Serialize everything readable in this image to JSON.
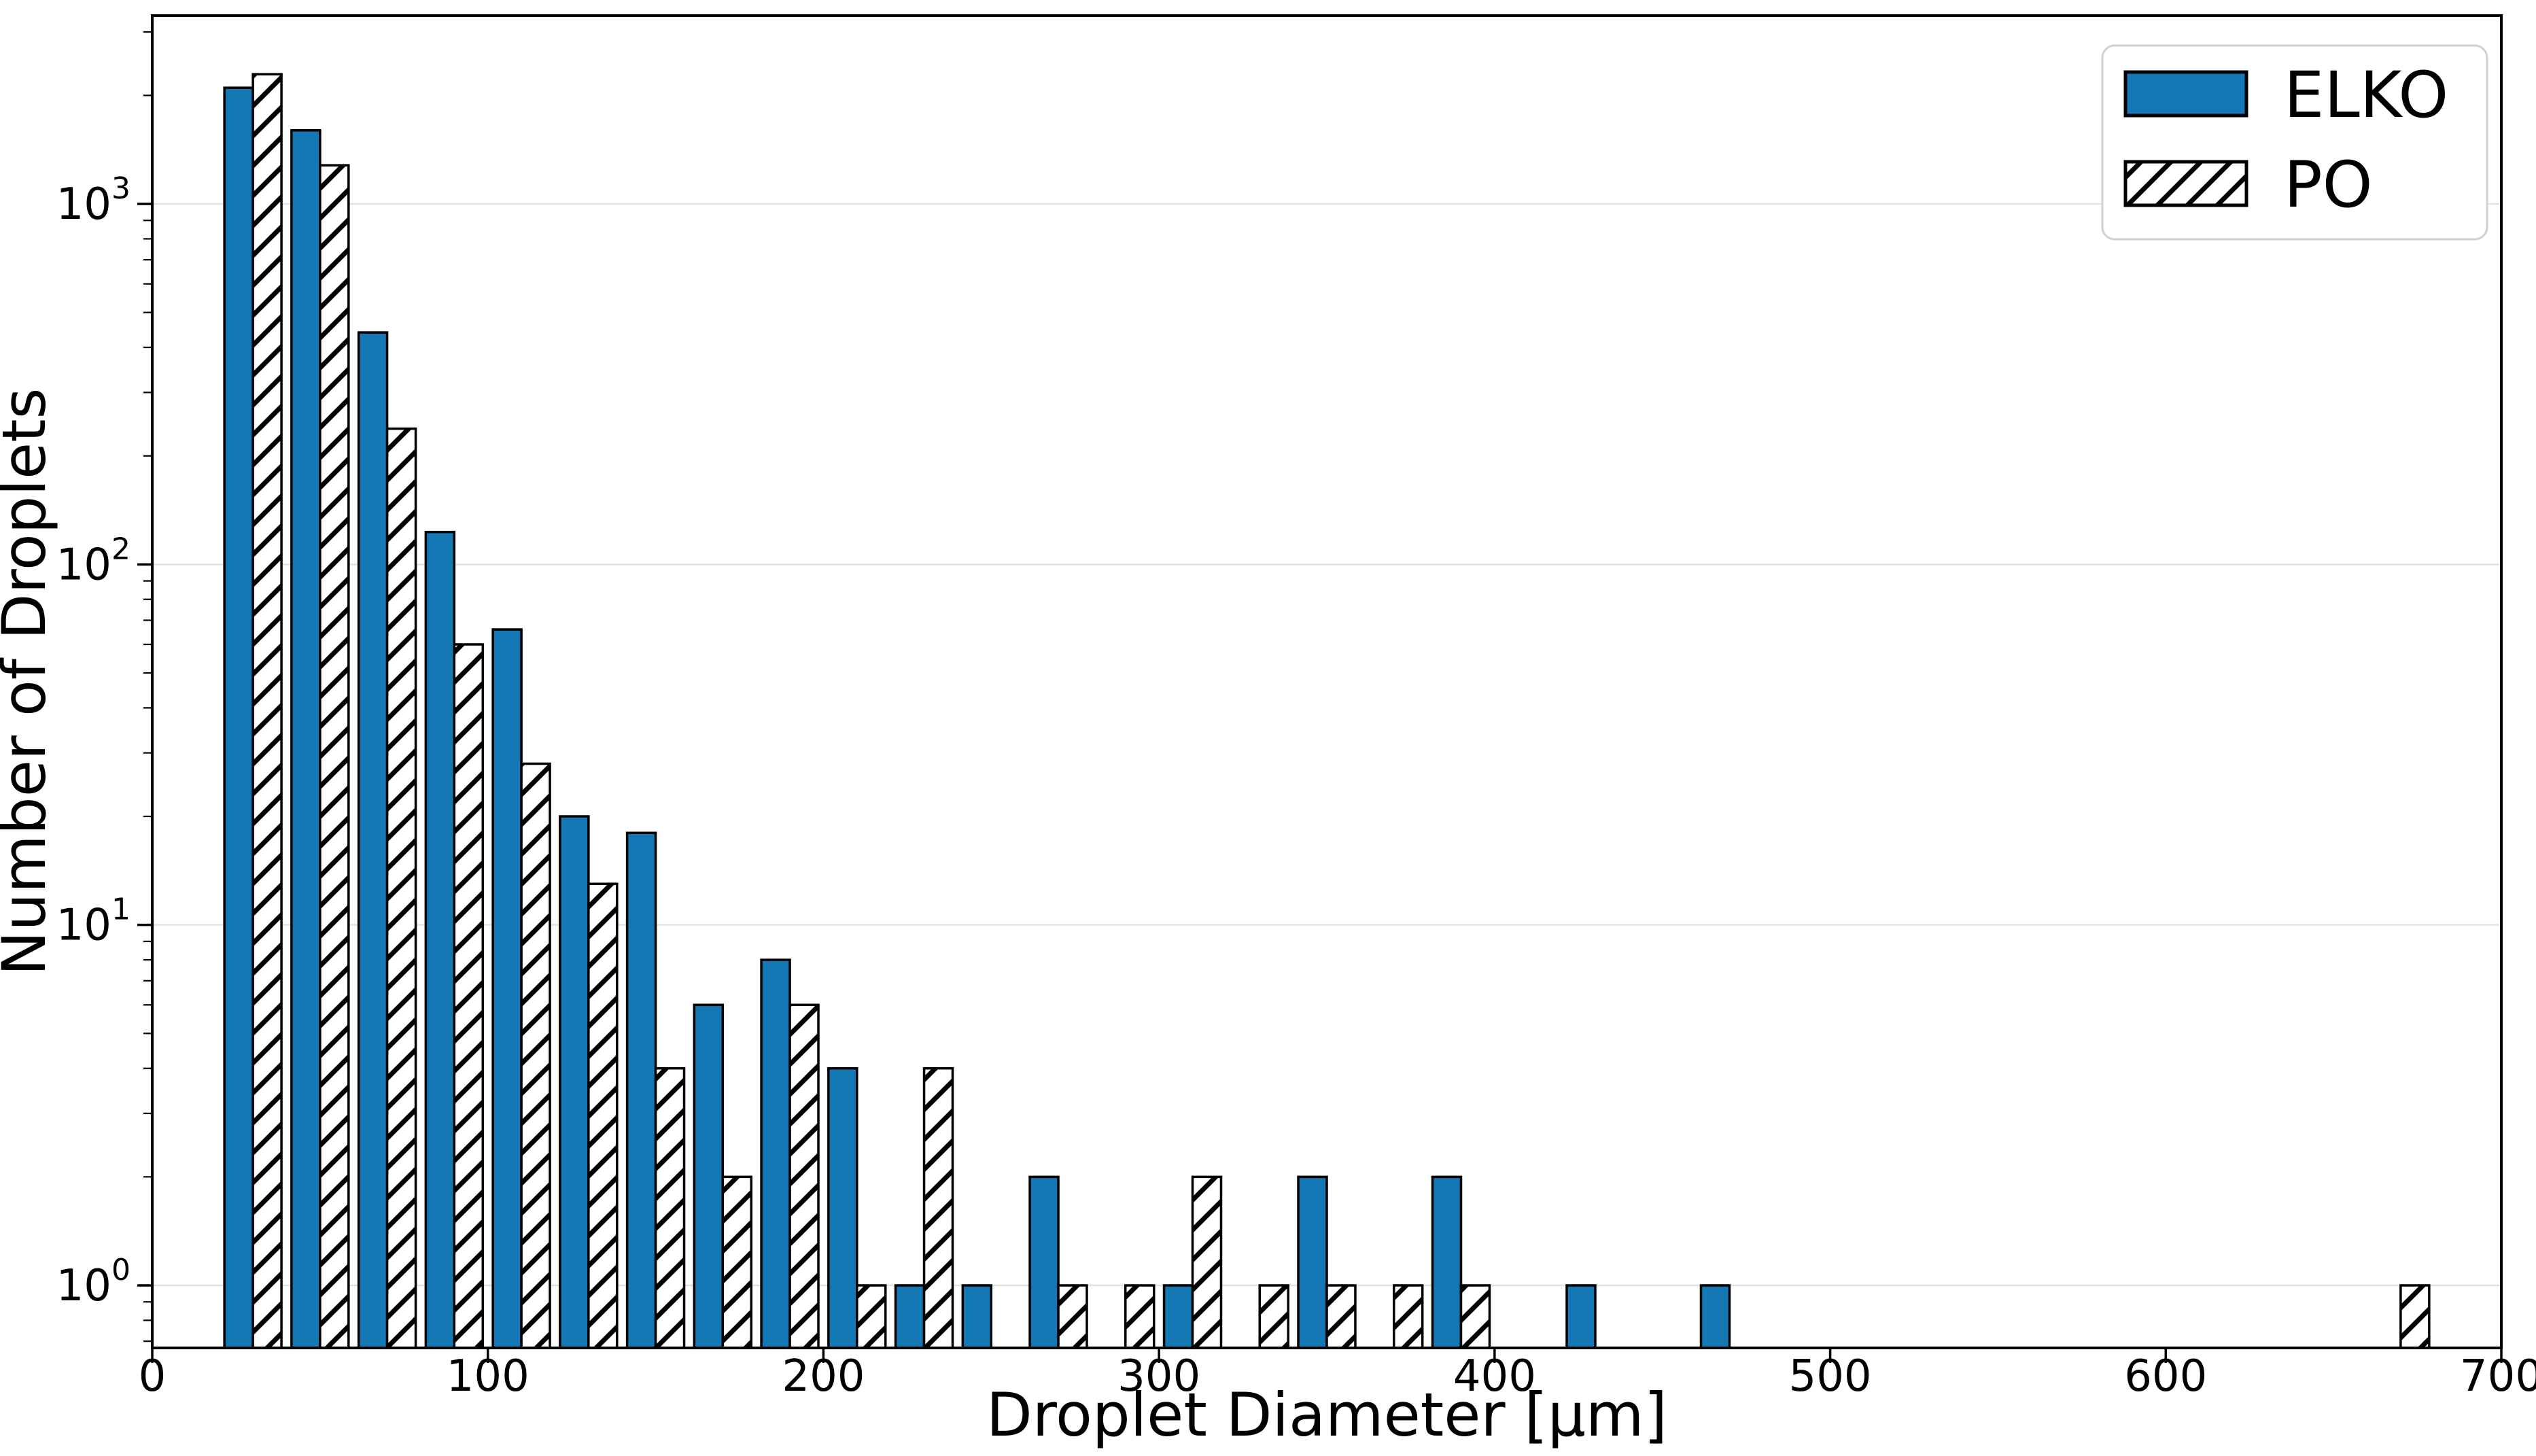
{
  "chart_data": {
    "type": "bar",
    "subtype": "log-histogram",
    "title": "",
    "xlabel": "Droplet Diameter [µm]",
    "ylabel": "Number of Droplets",
    "xlim": [
      0,
      700
    ],
    "ylim": [
      0.67,
      3340
    ],
    "x_ticks": [
      0,
      100,
      200,
      300,
      400,
      500,
      600,
      700
    ],
    "y_tick_exponents": [
      0,
      1,
      2,
      3
    ],
    "y_scale": "log",
    "grid": "horizontal decade gridlines only",
    "bin_width": 20,
    "bin_starts": [
      20,
      40,
      60,
      80,
      100,
      120,
      140,
      160,
      180,
      200,
      220,
      240,
      260,
      280,
      300,
      320,
      340,
      360,
      380,
      400,
      420,
      440,
      460,
      480,
      500,
      520,
      540,
      560,
      580,
      600,
      620,
      640,
      660,
      680
    ],
    "series": [
      {
        "name": "ELKO",
        "style": "solid",
        "color": "#1478b4",
        "edge_color": "#000000",
        "values": [
          2100,
          1600,
          440,
          123,
          66,
          20,
          18,
          6,
          8,
          4,
          1,
          1,
          2,
          0,
          1,
          0,
          2,
          0,
          2,
          0,
          1,
          0,
          1,
          0,
          0,
          0,
          0,
          0,
          0,
          0,
          0,
          0,
          0,
          0
        ]
      },
      {
        "name": "PO",
        "style": "hatched",
        "color": "#ffffff",
        "hatch": "diagonal-forward-slash",
        "edge_color": "#000000",
        "values": [
          2290,
          1280,
          238,
          60,
          28,
          13,
          4,
          2,
          6,
          1,
          4,
          0,
          1,
          1,
          2,
          1,
          1,
          1,
          1,
          0,
          0,
          0,
          0,
          0,
          0,
          0,
          0,
          0,
          0,
          0,
          0,
          0,
          1,
          0
        ]
      }
    ],
    "legend": {
      "position": "top-right",
      "entries": [
        "ELKO",
        "PO"
      ]
    },
    "colors": {
      "grid": "#e2e2e2",
      "spine": "#000000",
      "legend_border": "#d0d0d0",
      "background": "#ffffff"
    }
  }
}
